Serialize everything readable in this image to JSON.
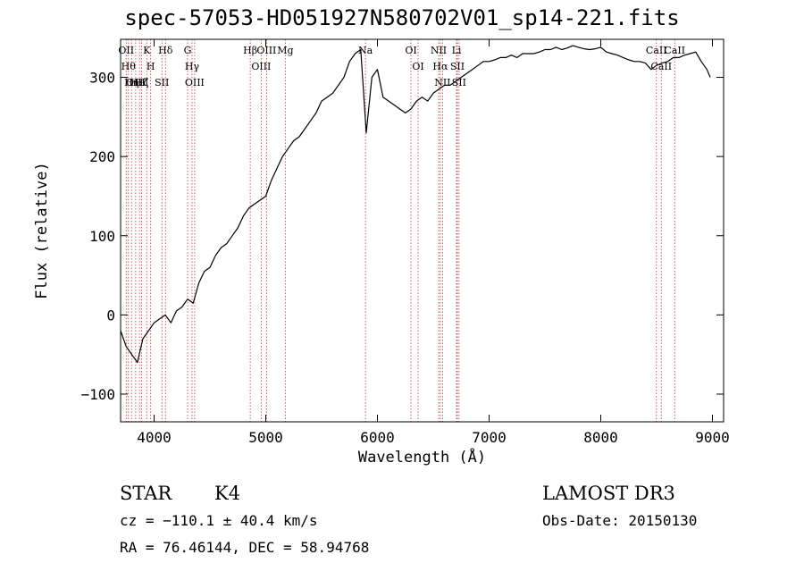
{
  "chart_data": {
    "type": "line",
    "title": "spec-57053-HD051927N580702V01_sp14-221.fits",
    "xlabel": "Wavelength (Å)",
    "ylabel": "Flux (relative)",
    "xlim": [
      3700,
      9100
    ],
    "ylim": [
      -135,
      348
    ],
    "xticks": [
      4000,
      5000,
      6000,
      7000,
      8000,
      9000
    ],
    "yticks": [
      -100,
      0,
      100,
      200,
      300
    ],
    "grid": false,
    "series": [
      {
        "x": [
          3700,
          3750,
          3800,
          3850,
          3900,
          3950,
          4000,
          4050,
          4100,
          4150,
          4200,
          4250,
          4300,
          4350,
          4400,
          4450,
          4500,
          4550,
          4600,
          4650,
          4700,
          4750,
          4800,
          4850,
          4900,
          4950,
          5000,
          5050,
          5100,
          5150,
          5200,
          5250,
          5300,
          5350,
          5400,
          5450,
          5500,
          5550,
          5600,
          5650,
          5700,
          5750,
          5800,
          5850,
          5900,
          5950,
          6000,
          6050,
          6100,
          6150,
          6200,
          6250,
          6300,
          6350,
          6400,
          6450,
          6500,
          6550,
          6600,
          6650,
          6700,
          6750,
          6800,
          6850,
          6900,
          6950,
          7000,
          7050,
          7100,
          7150,
          7200,
          7250,
          7300,
          7350,
          7400,
          7450,
          7500,
          7550,
          7600,
          7650,
          7700,
          7750,
          7800,
          7850,
          7900,
          7950,
          8000,
          8050,
          8100,
          8150,
          8200,
          8250,
          8300,
          8350,
          8400,
          8450,
          8500,
          8550,
          8600,
          8650,
          8700,
          8750,
          8800,
          8850,
          8900,
          8950,
          8980
        ],
        "y": [
          -20,
          -40,
          -50,
          -60,
          -30,
          -20,
          -10,
          -5,
          0,
          -10,
          5,
          10,
          20,
          15,
          40,
          55,
          60,
          75,
          85,
          90,
          100,
          110,
          125,
          135,
          140,
          145,
          150,
          170,
          185,
          200,
          210,
          220,
          225,
          235,
          245,
          255,
          270,
          275,
          280,
          290,
          300,
          320,
          330,
          335,
          230,
          300,
          310,
          275,
          270,
          265,
          260,
          255,
          260,
          270,
          275,
          270,
          280,
          285,
          290,
          290,
          295,
          300,
          305,
          310,
          315,
          320,
          320,
          322,
          325,
          325,
          328,
          325,
          330,
          330,
          330,
          332,
          335,
          335,
          338,
          335,
          337,
          340,
          338,
          336,
          335,
          336,
          338,
          332,
          330,
          328,
          325,
          322,
          320,
          320,
          318,
          310,
          315,
          318,
          320,
          325,
          325,
          328,
          330,
          332,
          320,
          310,
          300
        ]
      }
    ],
    "lines": [
      {
        "x": 3750,
        "label": "OII"
      },
      {
        "x": 3770,
        "label": "Hθ"
      },
      {
        "x": 3798,
        "label": "Hη"
      },
      {
        "x": 3835,
        "label": "OIII"
      },
      {
        "x": 3869,
        "label": "HeI"
      },
      {
        "x": 3889,
        "label": "Hζ"
      },
      {
        "x": 3934,
        "label": "K"
      },
      {
        "x": 3969,
        "label": "H"
      },
      {
        "x": 4070,
        "label": "SII"
      },
      {
        "x": 4102,
        "label": "Hδ"
      },
      {
        "x": 4300,
        "label": "G"
      },
      {
        "x": 4340,
        "label": "Hγ"
      },
      {
        "x": 4363,
        "label": "OIII"
      },
      {
        "x": 4861,
        "label": "Hβ"
      },
      {
        "x": 4959,
        "label": "OIII"
      },
      {
        "x": 5007,
        "label": "OIII"
      },
      {
        "x": 5175,
        "label": "Mg"
      },
      {
        "x": 5893,
        "label": "Na"
      },
      {
        "x": 6300,
        "label": "OI"
      },
      {
        "x": 6364,
        "label": "OI"
      },
      {
        "x": 6548,
        "label": "NII"
      },
      {
        "x": 6563,
        "label": "Hα"
      },
      {
        "x": 6583,
        "label": "NII"
      },
      {
        "x": 6708,
        "label": "Li"
      },
      {
        "x": 6716,
        "label": "SII"
      },
      {
        "x": 6731,
        "label": "SII"
      },
      {
        "x": 8498,
        "label": "CaII"
      },
      {
        "x": 8542,
        "label": "CaII"
      },
      {
        "x": 8662,
        "label": "CaII"
      }
    ]
  },
  "info": {
    "class": "STAR",
    "subclass": "K4",
    "survey": "LAMOST DR3",
    "cz": "cz = −110.1 ± 40.4 km/s",
    "obsdate": "Obs-Date: 20150130",
    "radec": "RA =  76.46144, DEC =  58.94768"
  }
}
